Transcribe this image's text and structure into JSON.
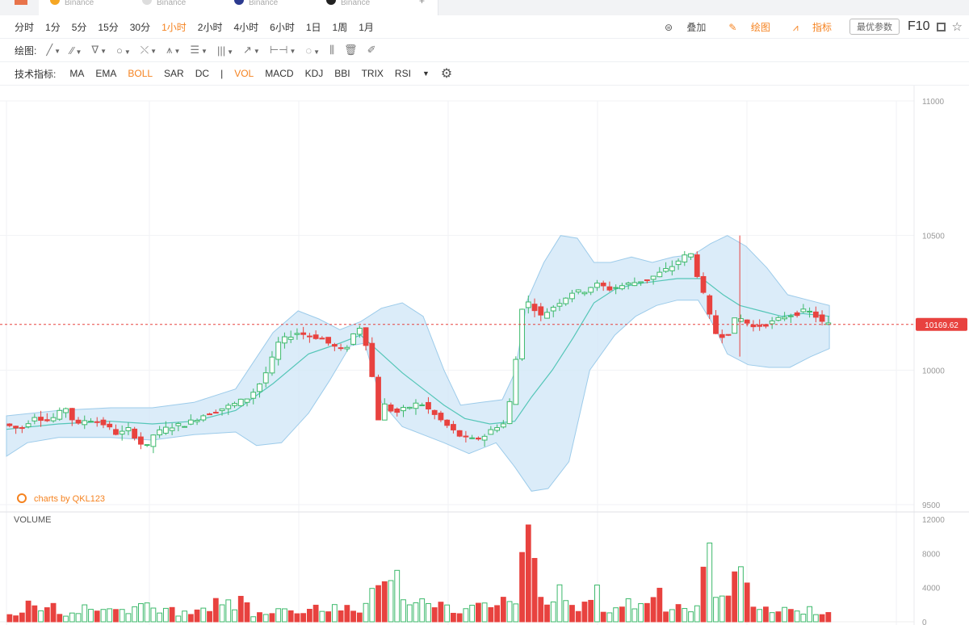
{
  "tabs": [
    {
      "label": "Binance",
      "color": "#f5a623"
    },
    {
      "label": "Binance",
      "color": "#cccccc"
    },
    {
      "label": "Binance",
      "color": "#2b3a8f"
    },
    {
      "label": "Binance",
      "color": "#222222"
    }
  ],
  "periods": [
    "分时",
    "1分",
    "5分",
    "15分",
    "30分",
    "1小时",
    "2小时",
    "4小时",
    "6小时",
    "1日",
    "1周",
    "1月"
  ],
  "active_period": "1小时",
  "right_tools": {
    "overlay": "叠加",
    "draw": "绘图",
    "indicator": "指标",
    "params": "最优参数",
    "f10": "F10"
  },
  "drawing": {
    "label": "绘图:"
  },
  "indicators": {
    "label": "技术指标:",
    "items": [
      "MA",
      "EMA",
      "BOLL",
      "SAR",
      "DC",
      "|",
      "VOL",
      "MACD",
      "KDJ",
      "BBI",
      "TRIX",
      "RSI"
    ],
    "active": [
      "BOLL",
      "VOL"
    ]
  },
  "watermark": "charts by QKL123",
  "volume_label": "VOLUME",
  "colors": {
    "up": "#3cb96b",
    "down": "#e8423f",
    "band": "#cfe6f7",
    "band_stroke": "#9ccbea",
    "mid": "#55c6b8",
    "accent": "#f5821f",
    "price_tag": "#e8423f"
  },
  "chart_data": {
    "type": "candlestick",
    "price_axis": {
      "ticks": [
        11000,
        10500,
        10000,
        9500
      ],
      "range": [
        9500,
        11000
      ]
    },
    "last_price": "10169.62",
    "last_price_value": 10169.62,
    "volume_axis": {
      "ticks": [
        12000,
        8000,
        4000,
        0
      ],
      "range": [
        0,
        12000
      ]
    },
    "price_path": [
      [
        0,
        9800
      ],
      [
        8,
        9780
      ],
      [
        15,
        9830
      ],
      [
        22,
        9810
      ],
      [
        30,
        9860
      ],
      [
        35,
        9790
      ],
      [
        40,
        9820
      ],
      [
        48,
        9800
      ],
      [
        55,
        9760
      ],
      [
        60,
        9780
      ],
      [
        65,
        9740
      ],
      [
        68,
        9700
      ],
      [
        72,
        9760
      ],
      [
        80,
        9790
      ],
      [
        88,
        9800
      ],
      [
        95,
        9830
      ],
      [
        102,
        9850
      ],
      [
        110,
        9870
      ],
      [
        118,
        9900
      ],
      [
        124,
        9960
      ],
      [
        128,
        10020
      ],
      [
        132,
        10100
      ],
      [
        136,
        10120
      ],
      [
        140,
        10140
      ],
      [
        146,
        10130
      ],
      [
        152,
        10120
      ],
      [
        158,
        10090
      ],
      [
        163,
        10070
      ],
      [
        166,
        10100
      ],
      [
        169,
        10150
      ],
      [
        171,
        10160
      ],
      [
        174,
        10100
      ],
      [
        176,
        10050
      ],
      [
        178,
        9900
      ],
      [
        180,
        9820
      ],
      [
        183,
        9870
      ],
      [
        188,
        9840
      ],
      [
        194,
        9860
      ],
      [
        200,
        9880
      ],
      [
        206,
        9840
      ],
      [
        212,
        9800
      ],
      [
        218,
        9760
      ],
      [
        224,
        9740
      ],
      [
        230,
        9750
      ],
      [
        236,
        9790
      ],
      [
        240,
        9800
      ],
      [
        243,
        9880
      ],
      [
        245,
        9900
      ],
      [
        247,
        10180
      ],
      [
        250,
        10260
      ],
      [
        254,
        10240
      ],
      [
        258,
        10200
      ],
      [
        263,
        10230
      ],
      [
        268,
        10260
      ],
      [
        273,
        10290
      ],
      [
        278,
        10290
      ],
      [
        282,
        10310
      ],
      [
        286,
        10320
      ],
      [
        290,
        10300
      ],
      [
        295,
        10310
      ],
      [
        300,
        10320
      ],
      [
        305,
        10330
      ],
      [
        310,
        10340
      ],
      [
        315,
        10360
      ],
      [
        320,
        10380
      ],
      [
        326,
        10420
      ],
      [
        330,
        10430
      ],
      [
        334,
        10330
      ],
      [
        338,
        10230
      ],
      [
        341,
        10140
      ],
      [
        345,
        10130
      ],
      [
        348,
        10140
      ],
      [
        352,
        10200
      ],
      [
        356,
        10180
      ],
      [
        360,
        10160
      ],
      [
        365,
        10170
      ],
      [
        370,
        10180
      ],
      [
        375,
        10200
      ],
      [
        380,
        10210
      ],
      [
        385,
        10220
      ],
      [
        389,
        10210
      ],
      [
        392,
        10180
      ],
      [
        395,
        10170
      ]
    ],
    "boll_upper": [
      [
        0,
        9830
      ],
      [
        25,
        9850
      ],
      [
        50,
        9860
      ],
      [
        70,
        9860
      ],
      [
        90,
        9880
      ],
      [
        110,
        9930
      ],
      [
        128,
        10140
      ],
      [
        140,
        10220
      ],
      [
        150,
        10190
      ],
      [
        160,
        10150
      ],
      [
        170,
        10180
      ],
      [
        180,
        10230
      ],
      [
        190,
        10250
      ],
      [
        200,
        10200
      ],
      [
        210,
        10000
      ],
      [
        218,
        9870
      ],
      [
        228,
        9880
      ],
      [
        238,
        9890
      ],
      [
        244,
        9990
      ],
      [
        250,
        10260
      ],
      [
        258,
        10400
      ],
      [
        266,
        10500
      ],
      [
        274,
        10490
      ],
      [
        282,
        10400
      ],
      [
        290,
        10400
      ],
      [
        300,
        10420
      ],
      [
        310,
        10400
      ],
      [
        320,
        10420
      ],
      [
        330,
        10430
      ],
      [
        338,
        10470
      ],
      [
        346,
        10500
      ],
      [
        355,
        10460
      ],
      [
        365,
        10380
      ],
      [
        375,
        10280
      ],
      [
        385,
        10260
      ],
      [
        395,
        10240
      ]
    ],
    "boll_mid": [
      [
        0,
        9780
      ],
      [
        25,
        9800
      ],
      [
        50,
        9810
      ],
      [
        70,
        9800
      ],
      [
        90,
        9810
      ],
      [
        110,
        9850
      ],
      [
        128,
        9950
      ],
      [
        145,
        10060
      ],
      [
        160,
        10100
      ],
      [
        170,
        10130
      ],
      [
        180,
        10060
      ],
      [
        190,
        9990
      ],
      [
        200,
        9930
      ],
      [
        210,
        9870
      ],
      [
        220,
        9820
      ],
      [
        232,
        9800
      ],
      [
        244,
        9810
      ],
      [
        252,
        9900
      ],
      [
        262,
        10000
      ],
      [
        272,
        10120
      ],
      [
        282,
        10250
      ],
      [
        292,
        10300
      ],
      [
        302,
        10320
      ],
      [
        312,
        10330
      ],
      [
        322,
        10340
      ],
      [
        334,
        10340
      ],
      [
        344,
        10280
      ],
      [
        352,
        10240
      ],
      [
        362,
        10220
      ],
      [
        372,
        10200
      ],
      [
        382,
        10210
      ],
      [
        395,
        10200
      ]
    ],
    "boll_lower": [
      [
        0,
        9680
      ],
      [
        10,
        9730
      ],
      [
        25,
        9750
      ],
      [
        50,
        9750
      ],
      [
        70,
        9740
      ],
      [
        90,
        9760
      ],
      [
        110,
        9770
      ],
      [
        120,
        9720
      ],
      [
        132,
        9730
      ],
      [
        145,
        9840
      ],
      [
        155,
        9960
      ],
      [
        165,
        10090
      ],
      [
        172,
        10100
      ],
      [
        180,
        9880
      ],
      [
        190,
        9790
      ],
      [
        200,
        9760
      ],
      [
        210,
        9730
      ],
      [
        222,
        9690
      ],
      [
        235,
        9730
      ],
      [
        244,
        9640
      ],
      [
        252,
        9550
      ],
      [
        260,
        9560
      ],
      [
        270,
        9660
      ],
      [
        280,
        10000
      ],
      [
        292,
        10130
      ],
      [
        302,
        10200
      ],
      [
        312,
        10240
      ],
      [
        322,
        10260
      ],
      [
        332,
        10260
      ],
      [
        340,
        10160
      ],
      [
        346,
        10060
      ],
      [
        356,
        10020
      ],
      [
        366,
        10010
      ],
      [
        376,
        10010
      ],
      [
        386,
        10050
      ],
      [
        395,
        10080
      ]
    ],
    "volume_bars": [
      [
        3,
        800
      ],
      [
        6,
        1200
      ],
      [
        10,
        3800
      ],
      [
        14,
        1500
      ],
      [
        20,
        2200
      ],
      [
        26,
        900
      ],
      [
        32,
        1400
      ],
      [
        38,
        1800
      ],
      [
        44,
        900
      ],
      [
        50,
        2500
      ],
      [
        55,
        1100
      ],
      [
        60,
        1600
      ],
      [
        64,
        2800
      ],
      [
        70,
        1000
      ],
      [
        76,
        1500
      ],
      [
        82,
        900
      ],
      [
        90,
        1200
      ],
      [
        96,
        1800
      ],
      [
        102,
        2900
      ],
      [
        108,
        1500
      ],
      [
        112,
        3200
      ],
      [
        116,
        800
      ],
      [
        124,
        1200
      ],
      [
        130,
        1800
      ],
      [
        136,
        1000
      ],
      [
        142,
        1500
      ],
      [
        148,
        2000
      ],
      [
        152,
        1200
      ],
      [
        156,
        1900
      ],
      [
        162,
        1500
      ],
      [
        166,
        900
      ],
      [
        170,
        1400
      ],
      [
        176,
        5800
      ],
      [
        178,
        6000
      ],
      [
        182,
        3800
      ],
      [
        186,
        5200
      ],
      [
        192,
        2500
      ],
      [
        196,
        2000
      ],
      [
        200,
        3000
      ],
      [
        206,
        2500
      ],
      [
        212,
        1200
      ],
      [
        220,
        1500
      ],
      [
        226,
        2100
      ],
      [
        232,
        1300
      ],
      [
        236,
        2500
      ],
      [
        242,
        2000
      ],
      [
        246,
        6500
      ],
      [
        248,
        10200
      ],
      [
        251,
        8500
      ],
      [
        256,
        1800
      ],
      [
        261,
        2500
      ],
      [
        266,
        4800
      ],
      [
        270,
        1500
      ],
      [
        276,
        2000
      ],
      [
        282,
        3400
      ],
      [
        286,
        1100
      ],
      [
        290,
        1500
      ],
      [
        296,
        2500
      ],
      [
        302,
        1700
      ],
      [
        306,
        2800
      ],
      [
        312,
        3800
      ],
      [
        316,
        1200
      ],
      [
        320,
        2400
      ],
      [
        326,
        1300
      ],
      [
        330,
        2000
      ],
      [
        334,
        6200
      ],
      [
        336,
        8400
      ],
      [
        338,
        5000
      ],
      [
        342,
        2800
      ],
      [
        346,
        2300
      ],
      [
        350,
        9800
      ],
      [
        352,
        9400
      ],
      [
        356,
        2600
      ],
      [
        360,
        1500
      ],
      [
        366,
        1200
      ],
      [
        372,
        1800
      ],
      [
        378,
        1200
      ],
      [
        384,
        1500
      ],
      [
        388,
        1300
      ],
      [
        392,
        1100
      ],
      [
        394,
        900
      ]
    ]
  }
}
